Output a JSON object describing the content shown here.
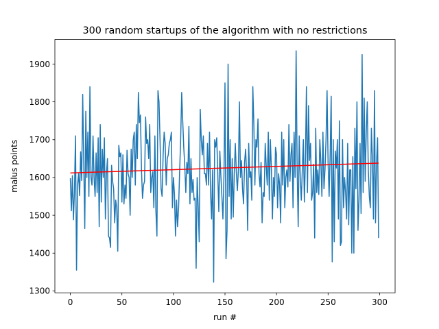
{
  "chart_data": {
    "type": "line",
    "title": "300 random startups of the algorithm with no restrictions",
    "xlabel": "run #",
    "ylabel": "malus points",
    "xlim": [
      -15,
      315
    ],
    "ylim": [
      1295,
      1965
    ],
    "xticks": [
      0,
      50,
      100,
      150,
      200,
      250,
      300
    ],
    "yticks": [
      1300,
      1400,
      1500,
      1600,
      1700,
      1800,
      1900
    ],
    "grid": false,
    "legend": "none",
    "series": [
      {
        "color": "#1f77b4",
        "x_start": 0,
        "x_step": 1,
        "values": [
          1598,
          1512,
          1605,
          1488,
          1565,
          1710,
          1355,
          1580,
          1610,
          1552,
          1668,
          1592,
          1820,
          1640,
          1465,
          1775,
          1600,
          1720,
          1550,
          1840,
          1600,
          1580,
          1710,
          1600,
          1550,
          1665,
          1560,
          1705,
          1470,
          1740,
          1535,
          1675,
          1600,
          1705,
          1490,
          1610,
          1650,
          1445,
          1440,
          1415,
          1632,
          1590,
          1570,
          1480,
          1540,
          1520,
          1405,
          1685,
          1655,
          1665,
          1535,
          1660,
          1530,
          1580,
          1545,
          1672,
          1610,
          1600,
          1500,
          1675,
          1600,
          1700,
          1720,
          1580,
          1740,
          1650,
          1825,
          1745,
          1765,
          1620,
          1545,
          1580,
          1590,
          1760,
          1690,
          1700,
          1650,
          1740,
          1560,
          1600,
          1615,
          1520,
          1710,
          1510,
          1445,
          1830,
          1800,
          1700,
          1570,
          1550,
          1660,
          1720,
          1690,
          1580,
          1650,
          1660,
          1690,
          1700,
          1720,
          1520,
          1600,
          1555,
          1445,
          1540,
          1470,
          1520,
          1615,
          1700,
          1825,
          1750,
          1680,
          1630,
          1560,
          1640,
          1610,
          1735,
          1530,
          1650,
          1560,
          1595,
          1540,
          1545,
          1360,
          1600,
          1525,
          1430,
          1780,
          1700,
          1660,
          1710,
          1610,
          1610,
          1580,
          1690,
          1580,
          1720,
          1560,
          1490,
          1620,
          1323,
          1700,
          1680,
          1705,
          1610,
          1510,
          1670,
          1605,
          1550,
          1490,
          1605,
          1850,
          1385,
          1460,
          1900,
          1550,
          1700,
          1490,
          1650,
          1495,
          1610,
          1690,
          1615,
          1565,
          1620,
          1800,
          1600,
          1645,
          1570,
          1530,
          1640,
          1675,
          1610,
          1460,
          1690,
          1600,
          1615,
          1540,
          1840,
          1740,
          1580,
          1700,
          1680,
          1755,
          1610,
          1575,
          1640,
          1480,
          1560,
          1550,
          1690,
          1630,
          1580,
          1720,
          1540,
          1700,
          1625,
          1490,
          1600,
          1550,
          1680,
          1660,
          1520,
          1610,
          1580,
          1480,
          1720,
          1580,
          1700,
          1520,
          1600,
          1620,
          1575,
          1740,
          1590,
          1660,
          1690,
          1520,
          1720,
          1600,
          1935,
          1625,
          1470,
          1710,
          1600,
          1540,
          1620,
          1700,
          1535,
          1645,
          1840,
          1560,
          1790,
          1645,
          1690,
          1540,
          1560,
          1635,
          1440,
          1730,
          1560,
          1620,
          1555,
          1700,
          1640,
          1550,
          1720,
          1570,
          1620,
          1700,
          1830,
          1640,
          1550,
          1660,
          1815,
          1377,
          1700,
          1430,
          1670,
          1625,
          1700,
          1490,
          1750,
          1420,
          1430,
          1700,
          1520,
          1600,
          1560,
          1490,
          1690,
          1475,
          1620,
          1620,
          1400,
          1655,
          1400,
          1730,
          1570,
          1800,
          1460,
          1540,
          1690,
          1505,
          1925,
          1560,
          1810,
          1590,
          1720,
          1800,
          1620,
          1550,
          1520,
          1730,
          1650,
          1490,
          1830,
          1480,
          1640,
          1705,
          1440
        ]
      },
      {
        "color": "#ff0000",
        "x": [
          0,
          299
        ],
        "values": [
          1612,
          1638
        ]
      }
    ]
  }
}
